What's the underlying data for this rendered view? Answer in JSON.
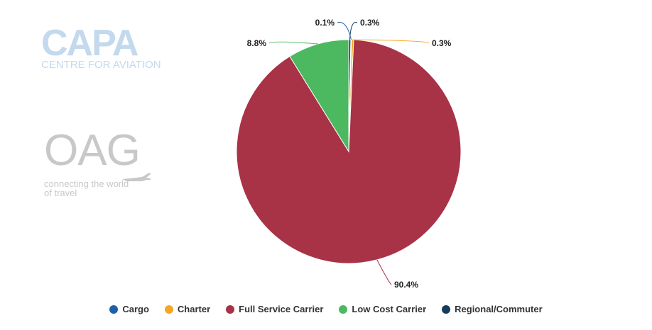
{
  "watermarks": {
    "capa": {
      "name": "CAPA",
      "tagline": "CENTRE FOR AVIATION"
    },
    "oag": {
      "name": "OAG",
      "tagline": "connecting the world of travel"
    }
  },
  "chart_data": {
    "type": "pie",
    "title": "",
    "slices": [
      {
        "name": "Cargo",
        "value": 0.1,
        "label": "0.1%",
        "color": "#1f5faa"
      },
      {
        "name": "Charter",
        "value": 0.3,
        "label": "0.3%",
        "color": "#f5a623"
      },
      {
        "name": "Full Service Carrier",
        "value": 90.4,
        "label": "90.4%",
        "color": "#a83246"
      },
      {
        "name": "Low Cost Carrier",
        "value": 8.8,
        "label": "8.8%",
        "color": "#4cb960"
      },
      {
        "name": "Regional/Commuter",
        "value": 0.3,
        "label": "0.3%",
        "color": "#163c5c"
      }
    ],
    "legend_position": "bottom"
  }
}
